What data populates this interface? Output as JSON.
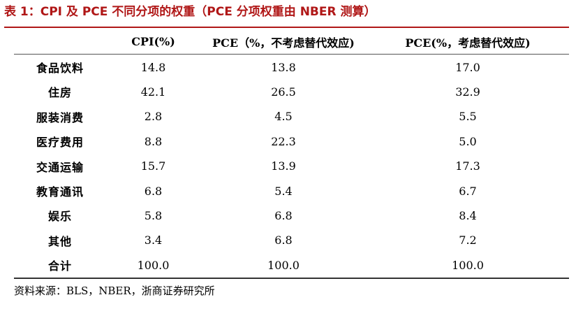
{
  "title": "表 1：CPI 及 PCE 不同分项的权重（PCE 分项权重由 NBER 测算）",
  "table": {
    "headers": [
      "",
      "CPI(%)",
      "PCE（%，不考虑替代效应)",
      "PCE(%，考虑替代效应)"
    ],
    "rows": [
      [
        "食品饮料",
        "14.8",
        "13.8",
        "17.0"
      ],
      [
        "住房",
        "42.1",
        "26.5",
        "32.9"
      ],
      [
        "服装消费",
        "2.8",
        "4.5",
        "5.5"
      ],
      [
        "医疗费用",
        "8.8",
        "22.3",
        "5.0"
      ],
      [
        "交通运输",
        "15.7",
        "13.9",
        "17.3"
      ],
      [
        "教育通讯",
        "6.8",
        "5.4",
        "6.7"
      ],
      [
        "娱乐",
        "5.8",
        "6.8",
        "8.4"
      ],
      [
        "其他",
        "3.4",
        "6.8",
        "7.2"
      ],
      [
        "合计",
        "100.0",
        "100.0",
        "100.0"
      ]
    ]
  },
  "source": "资料来源：BLS，NBER，浙商证券研究所",
  "colors": {
    "title": "#b01717"
  }
}
